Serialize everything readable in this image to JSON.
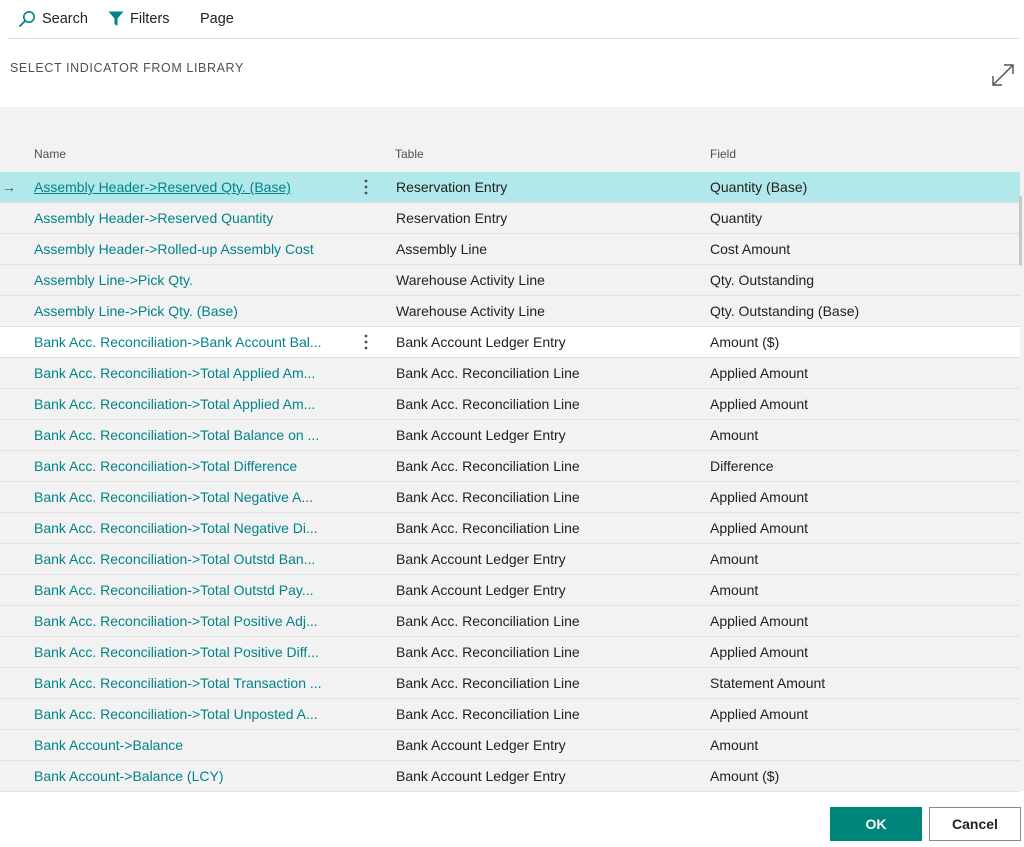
{
  "toolbar": {
    "search_label": "Search",
    "filters_label": "Filters",
    "page_label": "Page"
  },
  "dialog": {
    "title": "SELECT INDICATOR FROM LIBRARY"
  },
  "columns": {
    "name": "Name",
    "table": "Table",
    "field": "Field"
  },
  "rows": [
    {
      "name": "Assembly Header->Reserved Qty. (Base)",
      "table": "Reservation Entry",
      "field": "Quantity (Base)"
    },
    {
      "name": "Assembly Header->Reserved Quantity",
      "table": "Reservation Entry",
      "field": "Quantity"
    },
    {
      "name": "Assembly Header->Rolled-up Assembly Cost",
      "table": "Assembly Line",
      "field": "Cost Amount"
    },
    {
      "name": "Assembly Line->Pick Qty.",
      "table": "Warehouse Activity Line",
      "field": "Qty. Outstanding"
    },
    {
      "name": "Assembly Line->Pick Qty. (Base)",
      "table": "Warehouse Activity Line",
      "field": "Qty. Outstanding (Base)"
    },
    {
      "name": "Bank Acc. Reconciliation->Bank Account Bal...",
      "table": "Bank Account Ledger Entry",
      "field": "Amount ($)"
    },
    {
      "name": "Bank Acc. Reconciliation->Total Applied Am...",
      "table": "Bank Acc. Reconciliation Line",
      "field": "Applied Amount"
    },
    {
      "name": "Bank Acc. Reconciliation->Total Applied Am...",
      "table": "Bank Acc. Reconciliation Line",
      "field": "Applied Amount"
    },
    {
      "name": "Bank Acc. Reconciliation->Total Balance on ...",
      "table": "Bank Account Ledger Entry",
      "field": "Amount"
    },
    {
      "name": "Bank Acc. Reconciliation->Total Difference",
      "table": "Bank Acc. Reconciliation Line",
      "field": "Difference"
    },
    {
      "name": "Bank Acc. Reconciliation->Total Negative A...",
      "table": "Bank Acc. Reconciliation Line",
      "field": "Applied Amount"
    },
    {
      "name": "Bank Acc. Reconciliation->Total Negative Di...",
      "table": "Bank Acc. Reconciliation Line",
      "field": "Applied Amount"
    },
    {
      "name": "Bank Acc. Reconciliation->Total Outstd Ban...",
      "table": "Bank Account Ledger Entry",
      "field": "Amount"
    },
    {
      "name": "Bank Acc. Reconciliation->Total Outstd Pay...",
      "table": "Bank Account Ledger Entry",
      "field": "Amount"
    },
    {
      "name": "Bank Acc. Reconciliation->Total Positive Adj...",
      "table": "Bank Acc. Reconciliation Line",
      "field": "Applied Amount"
    },
    {
      "name": "Bank Acc. Reconciliation->Total Positive Diff...",
      "table": "Bank Acc. Reconciliation Line",
      "field": "Applied Amount"
    },
    {
      "name": "Bank Acc. Reconciliation->Total Transaction ...",
      "table": "Bank Acc. Reconciliation Line",
      "field": "Statement Amount"
    },
    {
      "name": "Bank Acc. Reconciliation->Total Unposted A...",
      "table": "Bank Acc. Reconciliation Line",
      "field": "Applied Amount"
    },
    {
      "name": "Bank Account->Balance",
      "table": "Bank Account Ledger Entry",
      "field": "Amount"
    },
    {
      "name": "Bank Account->Balance (LCY)",
      "table": "Bank Account Ledger Entry",
      "field": "Amount ($)"
    }
  ],
  "buttons": {
    "ok_label": "OK",
    "cancel_label": "Cancel"
  },
  "colors": {
    "accent": "#008489",
    "selected_row": "#b1e8ea",
    "ok_button": "#00857b"
  }
}
